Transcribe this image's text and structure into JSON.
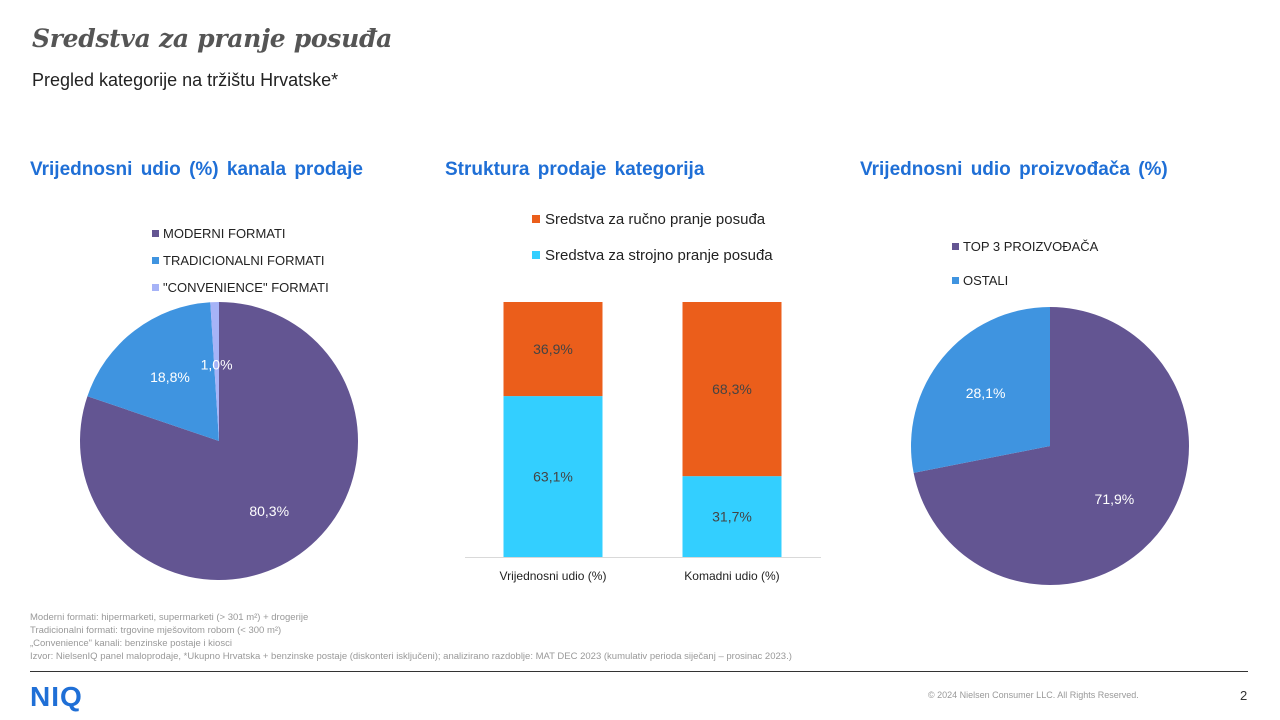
{
  "header": {
    "title": "Sredstva za pranje posuđa",
    "subtitle": "Pregled kategorije na tržištu Hrvatske*"
  },
  "sections": {
    "channels_title": "Vrijednosni udio (%) kanala prodaje",
    "structure_title": "Struktura prodaje kategorija",
    "manufacturers_title": "Vrijednosni udio proizvođača (%)"
  },
  "chart_data": [
    {
      "type": "pie",
      "title": "Vrijednosni udio (%) kanala prodaje",
      "categories": [
        "MODERNI FORMATI",
        "TRADICIONALNI FORMATI",
        "\"CONVENIENCE\" FORMATI"
      ],
      "values": [
        80.3,
        18.8,
        1.0
      ],
      "labels": [
        "80,3%",
        "18,8%",
        "1,0%"
      ],
      "colors": [
        "#635592",
        "#3f94e0",
        "#a6b3f7"
      ],
      "legend_position": "top"
    },
    {
      "type": "bar",
      "stacked": true,
      "title": "Struktura prodaje kategorija",
      "categories": [
        "Vrijednosni udio (%)",
        "Komadni udio (%)"
      ],
      "series": [
        {
          "name": "Sredstva za strojno pranje posuđa",
          "values": [
            63.1,
            31.7
          ],
          "labels": [
            "63,1%",
            "31,7%"
          ],
          "color": "#33cfff"
        },
        {
          "name": "Sredstva za ručno pranje posuđa",
          "values": [
            36.9,
            68.3
          ],
          "labels": [
            "36,9%",
            "68,3%"
          ],
          "color": "#eb5e1b"
        }
      ],
      "ylim": [
        0,
        100
      ],
      "legend_position": "top"
    },
    {
      "type": "pie",
      "title": "Vrijednosni udio proizvođača (%)",
      "categories": [
        "TOP 3 PROIZVOĐAČA",
        "OSTALI"
      ],
      "values": [
        71.9,
        28.1
      ],
      "labels": [
        "71,9%",
        "28,1%"
      ],
      "colors": [
        "#635592",
        "#3f94e0"
      ],
      "legend_position": "top"
    }
  ],
  "footnotes": [
    "Moderni formati: hipermarketi, supermarketi (> 301 m²) + drogerije",
    "Tradicionalni formati: trgovine mješovitom robom (< 300 m²)",
    "„Convenience\" kanali: benzinske postaje i kiosci",
    "Izvor: NielsenIQ panel maloprodaje, *Ukupno Hrvatska + benzinske postaje (diskonteri isključeni); analizirano razdoblje: MAT DEC 2023 (kumulativ perioda siječanj – prosinac 2023.)"
  ],
  "footer": {
    "logo": "NIQ",
    "copyright": "© 2024 Nielsen Consumer LLC. All Rights Reserved.",
    "page": "2"
  }
}
